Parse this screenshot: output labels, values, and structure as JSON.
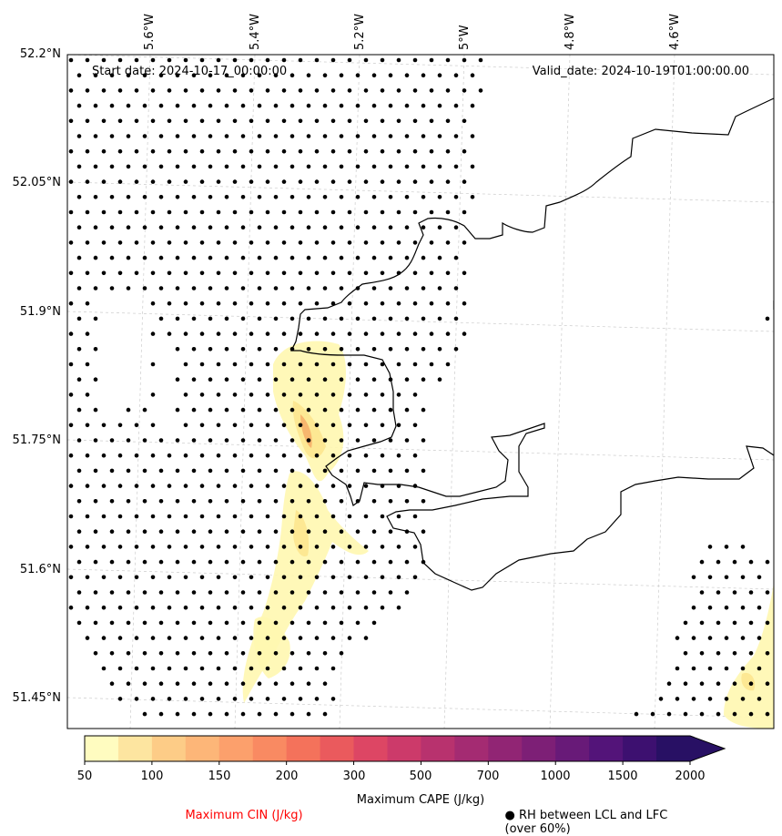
{
  "map": {
    "start_date": "Start date: 2024-10-17_00:00:00",
    "valid_date": "Valid_date: 2024-10-19T01:00:00.00",
    "lat_labels": [
      "52.2°N",
      "52.05°N",
      "51.9°N",
      "51.75°N",
      "51.6°N",
      "51.45°N"
    ],
    "lon_labels": [
      "5.6°W",
      "5.4°W",
      "5.2°W",
      "5°W",
      "4.8°W",
      "4.6°W"
    ],
    "coastline_color": "#000000",
    "gridline_color": "#cccccc",
    "rh_dot_color": "#000000",
    "cape_fill_colors": [
      "#fff7b0",
      "#fde68f",
      "#f6b06a"
    ]
  },
  "colorbar": {
    "title": "Maximum CAPE (J/kg)",
    "tick_labels": [
      "50",
      "100",
      "150",
      "200",
      "300",
      "500",
      "700",
      "1000",
      "1500",
      "2000"
    ],
    "levels": [
      50,
      75,
      100,
      125,
      150,
      175,
      200,
      250,
      300,
      400,
      500,
      600,
      700,
      850,
      1000,
      1250,
      1500,
      1750,
      2000
    ],
    "extend": "max",
    "colors": [
      "#fffcc0",
      "#fde5a0",
      "#fdcc87",
      "#fdb678",
      "#fca06c",
      "#f98a62",
      "#f4725b",
      "#ea5a5d",
      "#dd4664",
      "#cc3a6a",
      "#b8326e",
      "#a42b72",
      "#912574",
      "#7d1f76",
      "#681a78",
      "#531479",
      "#3d1070",
      "#281064"
    ]
  },
  "legend": {
    "cin_title": "Maximum CIN (J/kg)",
    "cin_color": "#ff0000",
    "rh_title": "● RH between LCL and LFC (over 60%)"
  }
}
